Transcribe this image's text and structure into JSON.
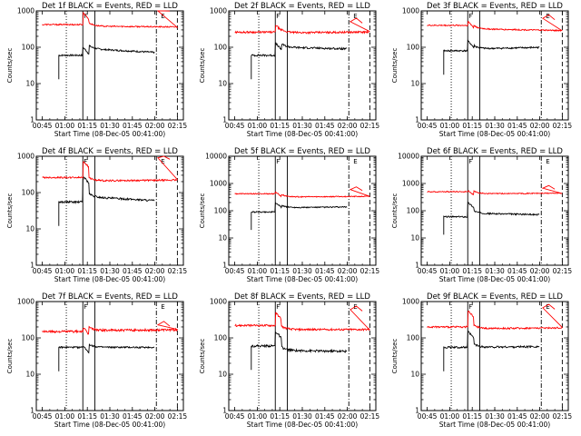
{
  "chart_data": [
    {
      "type": "line",
      "title": "Det 1f BLACK = Events, RED = LLD",
      "ylabel": "Counts/sec",
      "xlabel": "Start Time (08-Dec-05 00:41:00)",
      "y_scale": "log",
      "ylim": [
        1,
        1000
      ],
      "x_ticks": [
        "00:45",
        "01:00",
        "01:15",
        "01:30",
        "01:45",
        "02:00",
        "02:15"
      ],
      "y_ticks": [
        "1",
        "10",
        "100",
        "1000"
      ],
      "markers": [
        "F",
        "E"
      ],
      "series": [
        {
          "color": "#000000",
          "start": "00:56",
          "end": "02:00",
          "base": 60,
          "step": 90,
          "jump": 100,
          "trend": -0.2,
          "noise": 0.05
        },
        {
          "color": "#ff0000",
          "start": "00:45",
          "end": "02:15",
          "base": 420,
          "step": 380,
          "jump": 900,
          "trend": -0.05,
          "noise": 0.04
        }
      ]
    },
    {
      "type": "line",
      "title": "Det 2f BLACK = Events, RED = LLD",
      "ylabel": "Counts/sec",
      "xlabel": "Start Time (08-Dec-05 00:41:00)",
      "y_scale": "log",
      "ylim": [
        1,
        1000
      ],
      "x_ticks": [
        "00:45",
        "01:00",
        "01:15",
        "01:30",
        "01:45",
        "02:00",
        "02:15"
      ],
      "y_ticks": [
        "1",
        "10",
        "100",
        "1000"
      ],
      "markers": [
        "F",
        "E"
      ],
      "series": [
        {
          "color": "#000000",
          "start": "00:56",
          "end": "02:00",
          "base": 60,
          "step": 100,
          "jump": 130,
          "trend": -0.1,
          "noise": 0.06
        },
        {
          "color": "#ff0000",
          "start": "00:45",
          "end": "02:15",
          "base": 260,
          "step": 250,
          "jump": 420,
          "trend": 0.05,
          "noise": 0.06
        }
      ]
    },
    {
      "type": "line",
      "title": "Det 3f BLACK = Events, RED = LLD",
      "ylabel": "Counts/sec",
      "xlabel": "Start Time (08-Dec-05 00:41:00)",
      "y_scale": "log",
      "ylim": [
        1,
        1000
      ],
      "x_ticks": [
        "00:45",
        "01:00",
        "01:15",
        "01:30",
        "01:45",
        "02:00",
        "02:15"
      ],
      "y_ticks": [
        "1",
        "10",
        "100",
        "1000"
      ],
      "markers": [
        "F",
        "E"
      ],
      "series": [
        {
          "color": "#000000",
          "start": "00:56",
          "end": "02:00",
          "base": 80,
          "step": 90,
          "jump": 150,
          "trend": 0.1,
          "noise": 0.05
        },
        {
          "color": "#ff0000",
          "start": "00:45",
          "end": "02:15",
          "base": 400,
          "step": 320,
          "jump": 520,
          "trend": -0.1,
          "noise": 0.04
        }
      ]
    },
    {
      "type": "line",
      "title": "Det 4f BLACK = Events, RED = LLD",
      "ylabel": "Counts/sec",
      "xlabel": "Start Time (08-Dec-05 00:41:00)",
      "y_scale": "log",
      "ylim": [
        1,
        1000
      ],
      "x_ticks": [
        "00:45",
        "01:00",
        "01:15",
        "01:30",
        "01:45",
        "02:00",
        "02:15"
      ],
      "y_ticks": [
        "1",
        "10",
        "100",
        "1000"
      ],
      "markers": [
        "F",
        "E"
      ],
      "series": [
        {
          "color": "#000000",
          "start": "00:56",
          "end": "02:00",
          "base": 55,
          "step": 75,
          "jump": 280,
          "trend": -0.2,
          "noise": 0.06
        },
        {
          "color": "#ff0000",
          "start": "00:45",
          "end": "02:15",
          "base": 260,
          "step": 210,
          "jump": 750,
          "trend": 0.05,
          "noise": 0.05
        }
      ]
    },
    {
      "type": "line",
      "title": "Det 5f BLACK = Events, RED = LLD",
      "ylabel": "Counts/sec",
      "xlabel": "Start Time (08-Dec-05 00:41:00)",
      "y_scale": "log",
      "ylim": [
        1,
        10000
      ],
      "x_ticks": [
        "00:45",
        "01:00",
        "01:15",
        "01:30",
        "01:45",
        "02:00",
        "02:15"
      ],
      "y_ticks": [
        "1",
        "10",
        "100",
        "1000",
        "10000"
      ],
      "markers": [
        "F",
        "E"
      ],
      "series": [
        {
          "color": "#000000",
          "start": "00:56",
          "end": "02:00",
          "base": 90,
          "step": 130,
          "jump": 200,
          "trend": 0.05,
          "noise": 0.05
        },
        {
          "color": "#ff0000",
          "start": "00:45",
          "end": "02:15",
          "base": 420,
          "step": 320,
          "jump": 500,
          "trend": 0.05,
          "noise": 0.04
        }
      ]
    },
    {
      "type": "line",
      "title": "Det 6f BLACK = Events, RED = LLD",
      "ylabel": "Counts/sec",
      "xlabel": "Start Time (08-Dec-05 00:41:00)",
      "y_scale": "log",
      "ylim": [
        1,
        10000
      ],
      "x_ticks": [
        "00:45",
        "01:00",
        "01:15",
        "01:30",
        "01:45",
        "02:00",
        "02:15"
      ],
      "y_ticks": [
        "1",
        "10",
        "100",
        "1000",
        "10000"
      ],
      "markers": [
        "F",
        "E"
      ],
      "series": [
        {
          "color": "#000000",
          "start": "00:56",
          "end": "02:00",
          "base": 60,
          "step": 80,
          "jump": 200,
          "trend": -0.1,
          "noise": 0.06
        },
        {
          "color": "#ff0000",
          "start": "00:45",
          "end": "02:15",
          "base": 500,
          "step": 420,
          "jump": 560,
          "trend": 0.05,
          "noise": 0.04
        }
      ]
    },
    {
      "type": "line",
      "title": "Det 7f BLACK = Events, RED = LLD",
      "ylabel": "Counts/sec",
      "xlabel": "Start Time (08-Dec-05 00:41:00)",
      "y_scale": "log",
      "ylim": [
        1,
        1000
      ],
      "x_ticks": [
        "00:45",
        "01:00",
        "01:15",
        "01:30",
        "01:45",
        "02:00",
        "02:15"
      ],
      "y_ticks": [
        "1",
        "10",
        "100",
        "1000"
      ],
      "markers": [
        "F",
        "E"
      ],
      "series": [
        {
          "color": "#000000",
          "start": "00:56",
          "end": "02:00",
          "base": 55,
          "step": 55,
          "jump": 60,
          "trend": 0.0,
          "noise": 0.05
        },
        {
          "color": "#ff0000",
          "start": "00:45",
          "end": "02:15",
          "base": 150,
          "step": 160,
          "jump": 190,
          "trend": 0.05,
          "noise": 0.07
        }
      ]
    },
    {
      "type": "line",
      "title": "Det 8f BLACK = Events, RED = LLD",
      "ylabel": "Counts/sec",
      "xlabel": "Start Time (08-Dec-05 00:41:00)",
      "y_scale": "log",
      "ylim": [
        1,
        1000
      ],
      "x_ticks": [
        "00:45",
        "01:00",
        "01:15",
        "01:30",
        "01:45",
        "02:00",
        "02:15"
      ],
      "y_ticks": [
        "1",
        "10",
        "100",
        "1000"
      ],
      "markers": [
        "F",
        "E"
      ],
      "series": [
        {
          "color": "#000000",
          "start": "00:56",
          "end": "02:00",
          "base": 60,
          "step": 45,
          "jump": 150,
          "trend": -0.05,
          "noise": 0.07
        },
        {
          "color": "#ff0000",
          "start": "00:45",
          "end": "02:15",
          "base": 220,
          "step": 170,
          "jump": 500,
          "trend": 0.0,
          "noise": 0.06
        }
      ]
    },
    {
      "type": "line",
      "title": "Det 9f BLACK = Events, RED = LLD",
      "ylabel": "Counts/sec",
      "xlabel": "Start Time (08-Dec-05 00:41:00)",
      "y_scale": "log",
      "ylim": [
        1,
        1000
      ],
      "x_ticks": [
        "00:45",
        "01:00",
        "01:15",
        "01:30",
        "01:45",
        "02:00",
        "02:15"
      ],
      "y_ticks": [
        "1",
        "10",
        "100",
        "1000"
      ],
      "markers": [
        "F",
        "E"
      ],
      "series": [
        {
          "color": "#000000",
          "start": "00:56",
          "end": "02:00",
          "base": 55,
          "step": 55,
          "jump": 150,
          "trend": 0.05,
          "noise": 0.06
        },
        {
          "color": "#ff0000",
          "start": "00:45",
          "end": "02:15",
          "base": 200,
          "step": 180,
          "jump": 560,
          "trend": 0.05,
          "noise": 0.05
        }
      ]
    }
  ]
}
